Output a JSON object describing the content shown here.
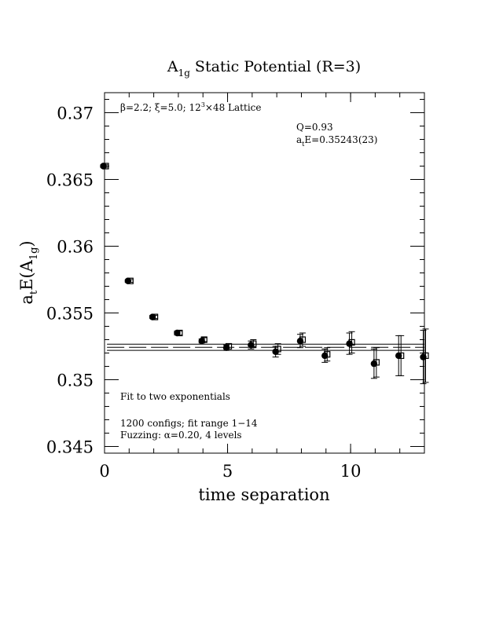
{
  "chart_data": {
    "type": "scatter",
    "title": "A",
    "title_sub": "1g",
    "title_rest": " Static Potential (R=3)",
    "xlabel": "time separation",
    "ylabel": {
      "main": "a",
      "sub": "t",
      "mid": "E(A",
      "sub2": "1g",
      "end": ")"
    },
    "xlim": [
      0,
      13
    ],
    "ylim": [
      0.3445,
      0.3715
    ],
    "x_ticks": [
      0,
      5,
      10
    ],
    "x_tick_labels": [
      "0",
      "5",
      "10"
    ],
    "y_ticks": [
      0.345,
      0.35,
      0.355,
      0.36,
      0.365,
      0.37
    ],
    "y_tick_labels": [
      "0.345",
      "0.35",
      "0.355",
      "0.36",
      "0.365",
      "0.37"
    ],
    "x_minor_step": 1,
    "y_minor_step": 0.001,
    "grid": false,
    "header_text": {
      "beta": "β=2.2; ξ=5.0; 12",
      "exp": "3",
      "rest": "×48 Lattice"
    },
    "fit_info": {
      "q": "Q=0.93",
      "energy_prefix": "a",
      "energy_sub": "t",
      "energy_value": "E=0.35243(23)"
    },
    "notes": {
      "fit_type": "Fit to two exponentials",
      "configs": "1200 configs; fit range 1−14",
      "fuzzing": "Fuzzing: α=0.20, 4 levels"
    },
    "fit": {
      "value": 0.35243,
      "error": 0.00023,
      "x_range": [
        1,
        14
      ]
    },
    "series": [
      {
        "marker": "filled-circle",
        "points": [
          {
            "x": 0,
            "y": 0.366,
            "err": 0.0001
          },
          {
            "x": 1,
            "y": 0.3574,
            "err": 0.0001
          },
          {
            "x": 2,
            "y": 0.3547,
            "err": 0.00012
          },
          {
            "x": 3,
            "y": 0.3535,
            "err": 0.00015
          },
          {
            "x": 4,
            "y": 0.3529,
            "err": 0.00015
          },
          {
            "x": 5,
            "y": 0.3524,
            "err": 0.0002
          },
          {
            "x": 6,
            "y": 0.3526,
            "err": 0.0003
          },
          {
            "x": 7,
            "y": 0.3521,
            "err": 0.0004
          },
          {
            "x": 8,
            "y": 0.3529,
            "err": 0.0005
          },
          {
            "x": 9,
            "y": 0.3518,
            "err": 0.0005
          },
          {
            "x": 10,
            "y": 0.3527,
            "err": 0.0008
          },
          {
            "x": 11,
            "y": 0.3512,
            "err": 0.0011
          },
          {
            "x": 12,
            "y": 0.3518,
            "err": 0.0015
          },
          {
            "x": 13,
            "y": 0.3517,
            "err": 0.002
          }
        ]
      },
      {
        "marker": "open-square",
        "points": [
          {
            "x": 0,
            "y": 0.366,
            "err": 0.0001
          },
          {
            "x": 1,
            "y": 0.3574,
            "err": 0.0001
          },
          {
            "x": 2,
            "y": 0.3547,
            "err": 0.00012
          },
          {
            "x": 3,
            "y": 0.3535,
            "err": 0.00015
          },
          {
            "x": 4,
            "y": 0.353,
            "err": 0.00015
          },
          {
            "x": 5,
            "y": 0.3525,
            "err": 0.0002
          },
          {
            "x": 6,
            "y": 0.3527,
            "err": 0.0003
          },
          {
            "x": 7,
            "y": 0.3523,
            "err": 0.0004
          },
          {
            "x": 8,
            "y": 0.353,
            "err": 0.0005
          },
          {
            "x": 9,
            "y": 0.3519,
            "err": 0.0005
          },
          {
            "x": 10,
            "y": 0.3528,
            "err": 0.0008
          },
          {
            "x": 11,
            "y": 0.3513,
            "err": 0.0011
          },
          {
            "x": 12,
            "y": 0.3518,
            "err": 0.0015
          },
          {
            "x": 13,
            "y": 0.3518,
            "err": 0.002
          }
        ]
      }
    ]
  }
}
